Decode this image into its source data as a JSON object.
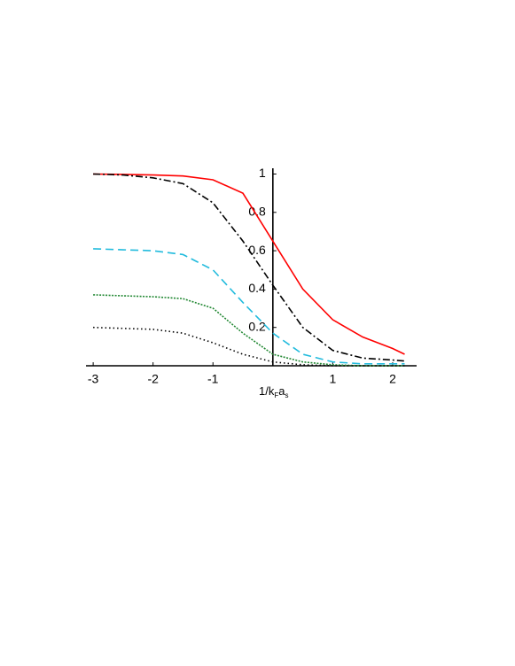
{
  "chart_data": {
    "type": "line",
    "xlabel_parts": [
      "1/k",
      "F",
      "a",
      "s"
    ],
    "x": [
      -3,
      -2.5,
      -2,
      -1.5,
      -1,
      -0.5,
      0,
      0.5,
      1,
      1.5,
      2,
      2.2
    ],
    "series": [
      {
        "color": "#ff0000",
        "dash": "solid",
        "values": [
          1.0,
          0.998,
          0.995,
          0.99,
          0.97,
          0.9,
          0.65,
          0.4,
          0.24,
          0.15,
          0.09,
          0.06
        ]
      },
      {
        "color": "#000000",
        "dash": "dashdot",
        "values": [
          1.0,
          0.995,
          0.98,
          0.95,
          0.85,
          0.65,
          0.42,
          0.2,
          0.08,
          0.04,
          0.03,
          0.025
        ]
      },
      {
        "color": "#22bbdd",
        "dash": "dashed",
        "values": [
          0.61,
          0.605,
          0.6,
          0.58,
          0.5,
          0.33,
          0.17,
          0.06,
          0.02,
          0.01,
          0.01,
          0.01
        ]
      },
      {
        "color": "#228833",
        "dash": "dense-dotted",
        "values": [
          0.37,
          0.365,
          0.36,
          0.35,
          0.3,
          0.17,
          0.06,
          0.02,
          0.005,
          0,
          0,
          0
        ]
      },
      {
        "color": "#000000",
        "dash": "dotted",
        "values": [
          0.2,
          0.195,
          0.19,
          0.17,
          0.12,
          0.06,
          0.02,
          0.005,
          0,
          0,
          0,
          0
        ]
      }
    ],
    "xlim": [
      -3.12,
      2.4
    ],
    "ylim": [
      0,
      1.03
    ],
    "xticks": [
      -3,
      -2,
      -1,
      1,
      2
    ],
    "yticks": [
      0.2,
      0.4,
      0.6,
      0.8,
      1
    ]
  }
}
